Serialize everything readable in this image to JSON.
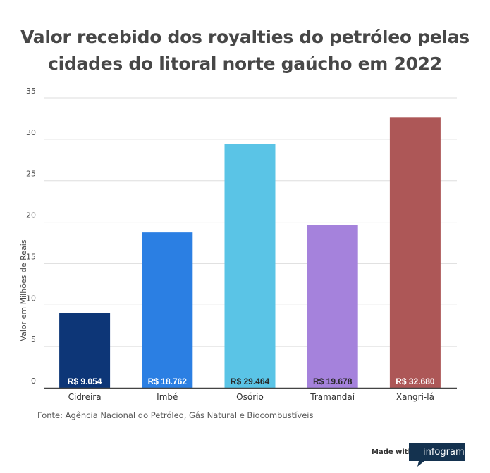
{
  "title_lines": [
    "Valor recebido dos royalties do petróleo pelas",
    "cidades do litoral norte gaúcho em 2022"
  ],
  "source": "Fonte: Agência Nacional do Petróleo, Gás Natural e Biocombustíveis",
  "footer": {
    "made_with": "Made with",
    "brand": "infogram"
  },
  "chart_data": {
    "type": "bar",
    "title": "Valor recebido dos royalties do petróleo pelas cidades do litoral norte gaúcho em 2022",
    "xlabel": "",
    "ylabel": "Valor em Milhões de Reais",
    "ylim": [
      0,
      35
    ],
    "yticks": [
      0,
      5,
      10,
      15,
      20,
      25,
      30,
      35
    ],
    "grid": true,
    "categories": [
      "Cidreira",
      "Imbé",
      "Osório",
      "Tramandaí",
      "Xangri-lá"
    ],
    "values": [
      9.054,
      18.762,
      29.464,
      19.678,
      32.68
    ],
    "data_labels": [
      "R$ 9.054",
      "R$ 18.762",
      "R$ 29.464",
      "R$ 19.678",
      "R$ 32.680"
    ],
    "colors": [
      "#0d3677",
      "#2b7fe3",
      "#5ac4e6",
      "#a582dc",
      "#ad5757"
    ],
    "label_colors": [
      "#ffffff",
      "#ffffff",
      "#2a2a2a",
      "#2a2a2a",
      "#ffffff"
    ]
  }
}
